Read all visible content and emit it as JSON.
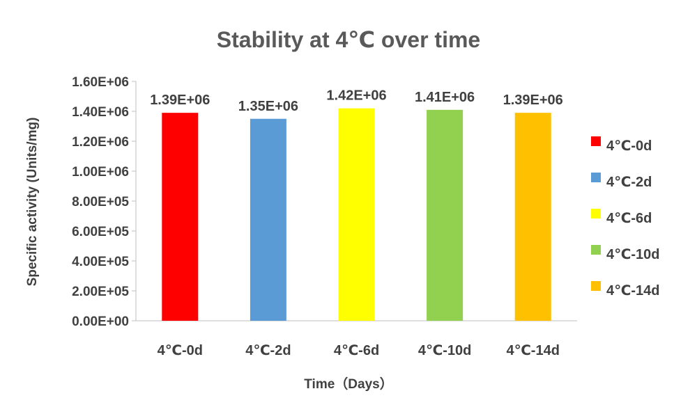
{
  "chart_data": {
    "type": "bar",
    "title": "Stability at 4℃ over time",
    "xlabel": "Time（Days）",
    "ylabel": "Specific activity (Units/mg)",
    "categories": [
      "4℃-0d",
      "4℃-2d",
      "4℃-6d",
      "4℃-10d",
      "4℃-14d"
    ],
    "values": [
      1390000,
      1350000,
      1420000,
      1410000,
      1390000
    ],
    "data_labels": [
      "1.39E+06",
      "1.35E+06",
      "1.42E+06",
      "1.41E+06",
      "1.39E+06"
    ],
    "colors": [
      "#ff0000",
      "#5b9bd5",
      "#ffff00",
      "#92d050",
      "#ffc000"
    ],
    "ylim": [
      0,
      1600000
    ],
    "yticks": [
      "0.00E+00",
      "2.00E+05",
      "4.00E+05",
      "6.00E+05",
      "8.00E+05",
      "1.00E+06",
      "1.20E+06",
      "1.40E+06",
      "1.60E+06"
    ],
    "ytick_values": [
      0,
      200000,
      400000,
      600000,
      800000,
      1000000,
      1200000,
      1400000,
      1600000
    ],
    "legend": {
      "position": "right",
      "entries": [
        "4℃-0d",
        "4℃-2d",
        "4℃-6d",
        "4℃-10d",
        "4℃-14d"
      ]
    },
    "grid": false
  }
}
